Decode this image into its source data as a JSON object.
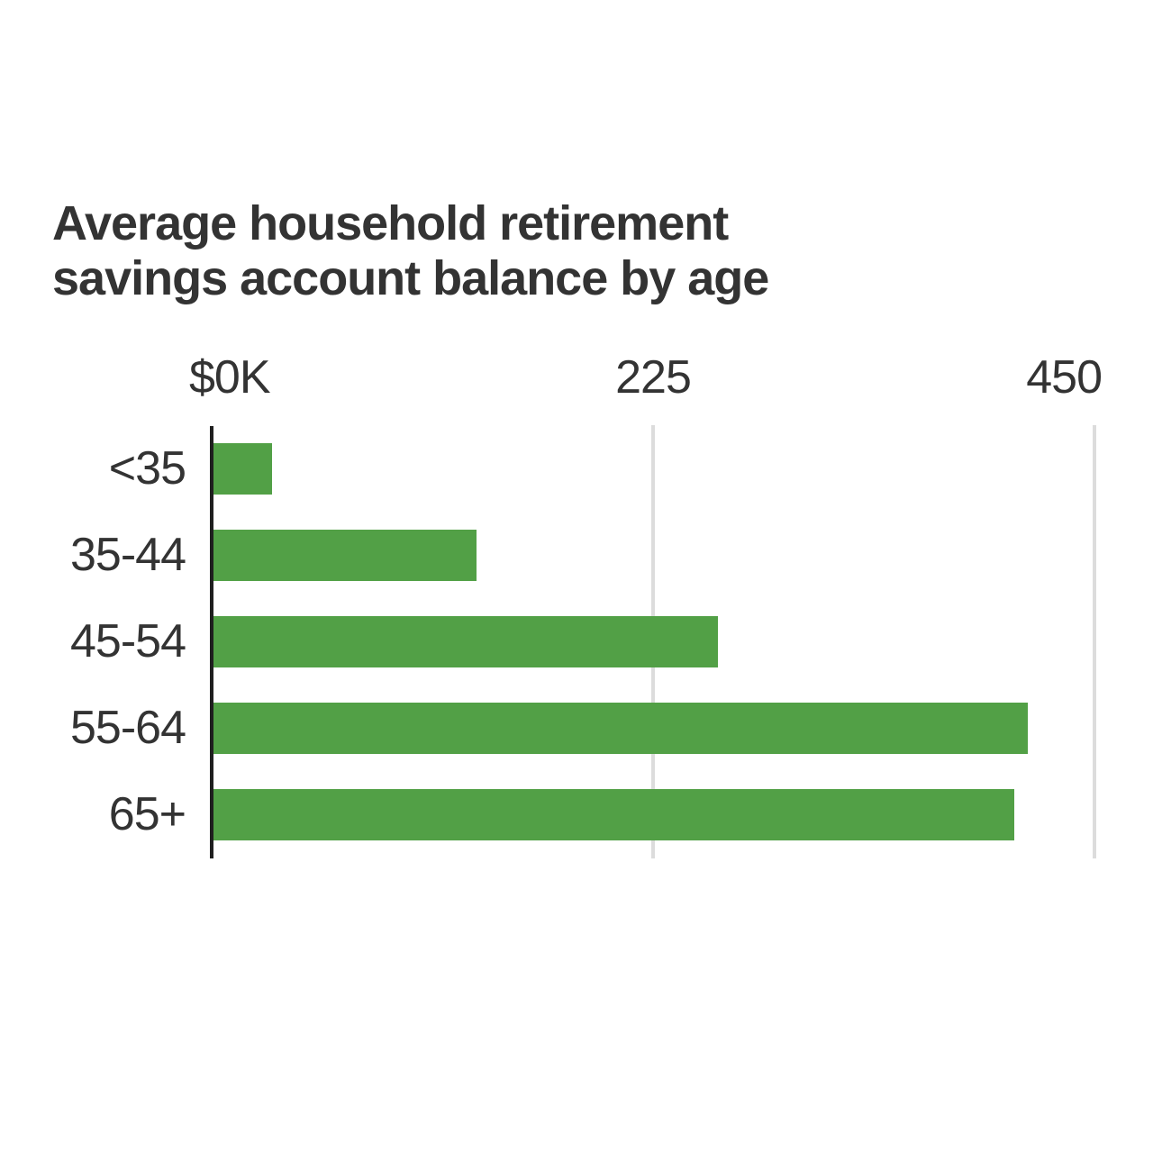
{
  "header": {
    "title_line1": "Average household retirement",
    "title_line2": "savings account balance by age"
  },
  "chart_data": {
    "type": "bar",
    "orientation": "horizontal",
    "title": "Average household retirement savings account balance by age",
    "categories": [
      "<35",
      "35-44",
      "45-54",
      "55-64",
      "65+"
    ],
    "values": [
      30,
      134,
      257,
      415,
      408
    ],
    "value_unit": "$K",
    "x_ticks": [
      {
        "label": "$0K",
        "value": 0
      },
      {
        "label": "225",
        "value": 225
      },
      {
        "label": "450",
        "value": 450
      }
    ],
    "xlim": [
      0,
      450
    ],
    "grid": "vertical",
    "legend": "none",
    "bar_color": "#52a046",
    "axis_color": "#1f1f1f",
    "gridline_color": "#dcdcdc",
    "text_color": "#333333"
  }
}
